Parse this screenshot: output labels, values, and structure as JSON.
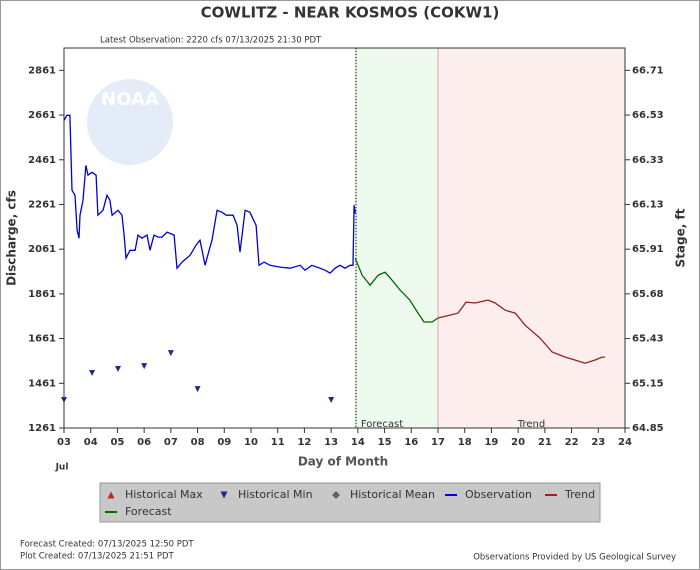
{
  "chart_data": {
    "type": "line",
    "title": "COWLITZ - NEAR KOSMOS  (COKW1)",
    "subtitle": "Latest Observation: 2220 cfs 07/13/2025 21:30 PDT",
    "logo_text": "NOAA",
    "x_label": "Day of Month",
    "x_sublabel": "Jul",
    "y_label": "Discharge, cfs",
    "y2_label": "Stage, ft",
    "xlim": [
      3,
      24
    ],
    "xticks": [
      {
        "value": 3,
        "label": "03"
      },
      {
        "value": 4,
        "label": "04"
      },
      {
        "value": 5,
        "label": "05"
      },
      {
        "value": 6,
        "label": "06"
      },
      {
        "value": 7,
        "label": "07"
      },
      {
        "value": 8,
        "label": "08"
      },
      {
        "value": 9,
        "label": "09"
      },
      10,
      11,
      12,
      13,
      14,
      15,
      16,
      17,
      18,
      19,
      20,
      21,
      22,
      23,
      24
    ],
    "ylim": [
      1261,
      2961
    ],
    "yticks": [
      1261,
      1461,
      1661,
      1861,
      2061,
      2261,
      2461,
      2661,
      2861
    ],
    "y2ticks": [
      64.85,
      65.15,
      65.43,
      65.68,
      65.91,
      66.13,
      66.33,
      66.53,
      66.71
    ],
    "now_line": 13.93,
    "regions": [
      {
        "label": "Forecast",
        "from": 13.93,
        "to": 17,
        "color": "#eefaee"
      },
      {
        "label": "Trend",
        "from": 17,
        "to": 24,
        "color": "#fdeeee"
      }
    ],
    "series": [
      {
        "name": "Historical Max",
        "color": "#cc2222",
        "marker": "triangle-up",
        "x": [],
        "values": []
      },
      {
        "name": "Historical Min",
        "color": "#1a2b8c",
        "marker": "triangle-down",
        "x": [
          3.0,
          4.05,
          5.02,
          6.0,
          7.0,
          8.0,
          13.0
        ],
        "values": [
          1386,
          1507,
          1525,
          1538,
          1596,
          1435,
          1386
        ]
      },
      {
        "name": "Historical Mean",
        "color": "#666666",
        "marker": "diamond",
        "x": [],
        "values": []
      },
      {
        "name": "Observation",
        "color": "#0000dd",
        "marker": "line",
        "x": [
          3.0,
          3.11,
          3.22,
          3.3,
          3.41,
          3.49,
          3.56,
          3.6,
          3.71,
          3.82,
          3.9,
          4.05,
          4.2,
          4.27,
          4.46,
          4.61,
          4.72,
          4.8,
          5.02,
          5.17,
          5.25,
          5.32,
          5.47,
          5.66,
          5.77,
          5.92,
          6.11,
          6.22,
          6.37,
          6.52,
          6.67,
          6.86,
          7.12,
          7.23,
          7.42,
          7.72,
          7.94,
          8.09,
          8.28,
          8.43,
          8.54,
          8.73,
          8.92,
          9.07,
          9.33,
          9.48,
          9.59,
          9.78,
          9.96,
          10.19,
          10.3,
          10.49,
          10.71,
          11.09,
          11.46,
          11.84,
          12.02,
          12.28,
          12.58,
          12.77,
          12.96,
          13.15,
          13.33,
          13.52,
          13.71,
          13.82,
          13.86,
          13.9
        ],
        "values": [
          2637,
          2660,
          2660,
          2325,
          2302,
          2146,
          2110,
          2213,
          2280,
          2436,
          2392,
          2405,
          2392,
          2213,
          2235,
          2302,
          2280,
          2213,
          2235,
          2213,
          2124,
          2021,
          2056,
          2056,
          2124,
          2110,
          2124,
          2056,
          2124,
          2115,
          2115,
          2137,
          2124,
          1976,
          2003,
          2034,
          2079,
          2101,
          1989,
          2056,
          2101,
          2235,
          2226,
          2213,
          2213,
          2168,
          2048,
          2235,
          2226,
          2168,
          1989,
          2003,
          1989,
          1981,
          1976,
          1989,
          1967,
          1989,
          1976,
          1967,
          1954,
          1976,
          1989,
          1976,
          1989,
          1989,
          2258,
          2220
        ]
      },
      {
        "name": "Trend",
        "color": "#992222",
        "marker": "line",
        "x": [
          17.0,
          17.45,
          17.75,
          18.05,
          18.39,
          18.87,
          19.14,
          19.51,
          19.89,
          20.26,
          20.82,
          21.27,
          21.76,
          22.13,
          22.51,
          22.88,
          23.14,
          23.25
        ],
        "values": [
          1753,
          1766,
          1775,
          1824,
          1820,
          1833,
          1820,
          1788,
          1775,
          1721,
          1663,
          1601,
          1578,
          1565,
          1551,
          1565,
          1578,
          1578
        ]
      },
      {
        "name": "Forecast",
        "color": "#006600",
        "marker": "line",
        "x": [
          13.9,
          14.16,
          14.46,
          14.76,
          15.02,
          15.28,
          15.58,
          15.95,
          16.25,
          16.48,
          16.78,
          17.0
        ],
        "values": [
          2021,
          1945,
          1900,
          1945,
          1958,
          1922,
          1878,
          1833,
          1775,
          1735,
          1735,
          1753
        ]
      }
    ],
    "footer_left": [
      "Forecast Created: 07/13/2025 12:50 PDT",
      "Plot Created: 07/13/2025 21:51 PDT"
    ],
    "footer_right": "Observations Provided by US Geological Survey"
  }
}
